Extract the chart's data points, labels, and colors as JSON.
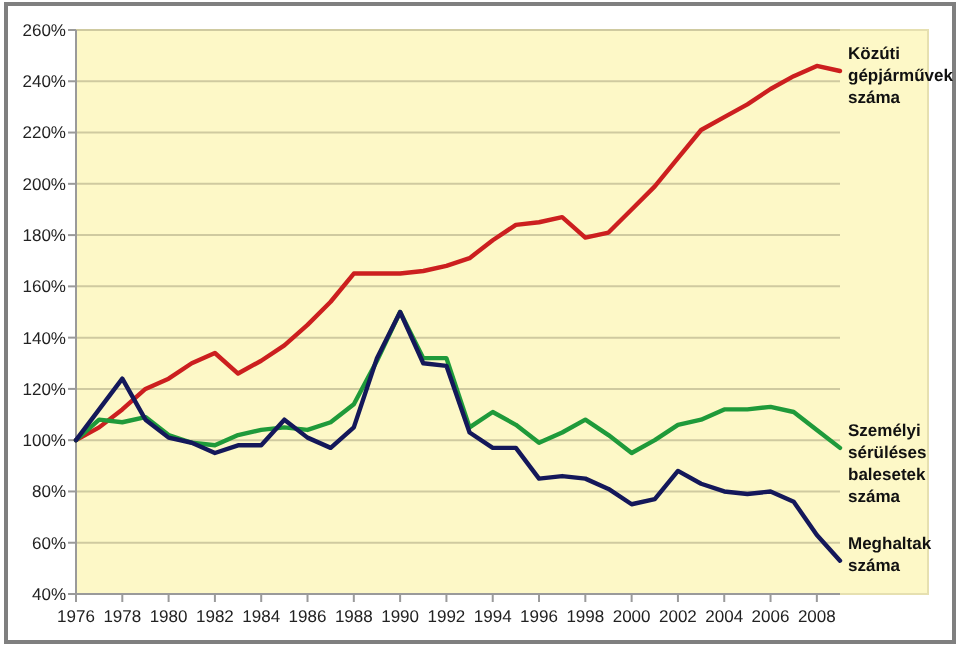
{
  "chart_data": {
    "type": "line",
    "x": [
      1976,
      1977,
      1978,
      1979,
      1980,
      1981,
      1982,
      1983,
      1984,
      1985,
      1986,
      1987,
      1988,
      1989,
      1990,
      1991,
      1992,
      1993,
      1994,
      1995,
      1996,
      1997,
      1998,
      1999,
      2000,
      2001,
      2002,
      2003,
      2004,
      2005,
      2006,
      2007,
      2008,
      2009
    ],
    "series": [
      {
        "name": "Közúti gépjárművek száma",
        "color": "#cc1f1f",
        "values": [
          100,
          105,
          112,
          120,
          124,
          130,
          134,
          126,
          131,
          137,
          145,
          154,
          165,
          165,
          165,
          166,
          168,
          171,
          178,
          184,
          185,
          187,
          179,
          181,
          190,
          199,
          210,
          221,
          226,
          231,
          237,
          242,
          246,
          244
        ]
      },
      {
        "name": "Személyi sérüléses balesetek száma",
        "color": "#1f9a3a",
        "values": [
          100,
          108,
          107,
          109,
          102,
          99,
          98,
          102,
          104,
          105,
          104,
          107,
          114,
          131,
          150,
          132,
          132,
          105,
          111,
          106,
          99,
          103,
          108,
          102,
          95,
          100,
          106,
          108,
          112,
          112,
          113,
          111,
          104,
          97
        ]
      },
      {
        "name": "Meghaltak száma",
        "color": "#14185a",
        "values": [
          100,
          112,
          124,
          108,
          101,
          99,
          95,
          98,
          98,
          108,
          101,
          97,
          105,
          132,
          150,
          130,
          129,
          103,
          97,
          97,
          85,
          86,
          85,
          81,
          75,
          77,
          88,
          83,
          80,
          79,
          80,
          76,
          63,
          53
        ]
      }
    ],
    "xlim": [
      1976,
      2009
    ],
    "xticks": [
      1976,
      1978,
      1980,
      1982,
      1984,
      1986,
      1988,
      1990,
      1992,
      1994,
      1996,
      1998,
      2000,
      2002,
      2004,
      2006,
      2008
    ],
    "ylim": [
      40,
      260
    ],
    "yticks": [
      {
        "value": 40,
        "label": "40%"
      },
      {
        "value": 60,
        "label": "60%"
      },
      {
        "value": 80,
        "label": "80%"
      },
      {
        "value": 100,
        "label": "100%"
      },
      {
        "value": 120,
        "label": "120%"
      },
      {
        "value": 140,
        "label": "140%"
      },
      {
        "value": 160,
        "label": "160%"
      },
      {
        "value": 180,
        "label": "180%"
      },
      {
        "value": 200,
        "label": "200%"
      },
      {
        "value": 220,
        "label": "220%"
      },
      {
        "value": 240,
        "label": "240%"
      },
      {
        "value": 260,
        "label": "260%"
      }
    ],
    "grid": "y",
    "legend": false,
    "marker": "none",
    "line_style": "solid"
  }
}
